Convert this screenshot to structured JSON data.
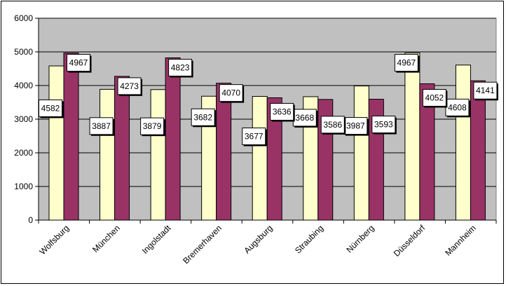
{
  "chart_data": {
    "type": "bar",
    "categories": [
      "Wolfsburg",
      "München",
      "Ingolstadt",
      "Bremerhaven",
      "Augsburg",
      "Straubing",
      "Nürnberg",
      "Düsseldorf",
      "Mannheim"
    ],
    "series": [
      {
        "values": [
          4582,
          3887,
          3879,
          3682,
          3677,
          3668,
          3987,
          4967,
          4608
        ],
        "color": "#FFFFCC"
      },
      {
        "values": [
          4967,
          4273,
          4823,
          4070,
          3636,
          3586,
          3593,
          4052,
          4141
        ],
        "color": "#993366"
      }
    ],
    "ylim": [
      0,
      6000
    ],
    "yticks": [
      "0",
      "1000",
      "2000",
      "3000",
      "4000",
      "5000",
      "6000"
    ],
    "grid": true,
    "plot_background": "#C0C0C0",
    "legend": "none",
    "title": "",
    "xlabel": "",
    "ylabel": ""
  }
}
